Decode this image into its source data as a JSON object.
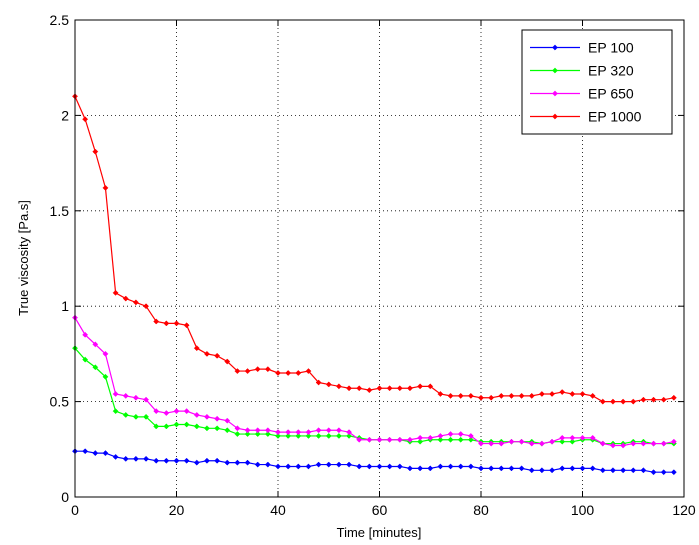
{
  "chart_data": {
    "type": "line",
    "title": "",
    "xlabel": "Time [minutes]",
    "ylabel": "True viscosity [Pa.s]",
    "xlim": [
      0,
      120
    ],
    "ylim": [
      0,
      2.5
    ],
    "xticks": [
      0,
      20,
      40,
      60,
      80,
      100,
      120
    ],
    "yticks": [
      0,
      0.5,
      1,
      1.5,
      2,
      2.5
    ],
    "xtick_labels": [
      "0",
      "20",
      "40",
      "60",
      "80",
      "100",
      "120"
    ],
    "ytick_labels": [
      "0",
      "0.5",
      "1",
      "1.5",
      "2",
      "2.5"
    ],
    "grid": true,
    "legend_position": "top-right",
    "x": [
      0,
      2,
      4,
      6,
      8,
      10,
      12,
      14,
      16,
      18,
      20,
      22,
      24,
      26,
      28,
      30,
      32,
      34,
      36,
      38,
      40,
      42,
      44,
      46,
      48,
      50,
      52,
      54,
      56,
      58,
      60,
      62,
      64,
      66,
      68,
      70,
      72,
      74,
      76,
      78,
      80,
      82,
      84,
      86,
      88,
      90,
      92,
      94,
      96,
      98,
      100,
      102,
      104,
      106,
      108,
      110,
      112,
      114,
      116,
      118
    ],
    "series": [
      {
        "name": "EP 100",
        "color": "#0000ff",
        "values": [
          0.24,
          0.24,
          0.23,
          0.23,
          0.21,
          0.2,
          0.2,
          0.2,
          0.19,
          0.19,
          0.19,
          0.19,
          0.18,
          0.19,
          0.19,
          0.18,
          0.18,
          0.18,
          0.17,
          0.17,
          0.16,
          0.16,
          0.16,
          0.16,
          0.17,
          0.17,
          0.17,
          0.17,
          0.16,
          0.16,
          0.16,
          0.16,
          0.16,
          0.15,
          0.15,
          0.15,
          0.16,
          0.16,
          0.16,
          0.16,
          0.15,
          0.15,
          0.15,
          0.15,
          0.15,
          0.14,
          0.14,
          0.14,
          0.15,
          0.15,
          0.15,
          0.15,
          0.14,
          0.14,
          0.14,
          0.14,
          0.14,
          0.13,
          0.13,
          0.13
        ]
      },
      {
        "name": "EP 320",
        "color": "#00ff00",
        "values": [
          0.78,
          0.72,
          0.68,
          0.63,
          0.45,
          0.43,
          0.42,
          0.42,
          0.37,
          0.37,
          0.38,
          0.38,
          0.37,
          0.36,
          0.36,
          0.35,
          0.33,
          0.33,
          0.33,
          0.33,
          0.32,
          0.32,
          0.32,
          0.32,
          0.32,
          0.32,
          0.32,
          0.32,
          0.31,
          0.3,
          0.3,
          0.3,
          0.3,
          0.29,
          0.29,
          0.3,
          0.3,
          0.3,
          0.3,
          0.3,
          0.29,
          0.29,
          0.29,
          0.29,
          0.29,
          0.29,
          0.28,
          0.29,
          0.29,
          0.29,
          0.3,
          0.3,
          0.28,
          0.28,
          0.28,
          0.29,
          0.29,
          0.28,
          0.28,
          0.28
        ]
      },
      {
        "name": "EP 650",
        "color": "#ff00ff",
        "values": [
          0.94,
          0.85,
          0.8,
          0.75,
          0.54,
          0.53,
          0.52,
          0.51,
          0.45,
          0.44,
          0.45,
          0.45,
          0.43,
          0.42,
          0.41,
          0.4,
          0.36,
          0.35,
          0.35,
          0.35,
          0.34,
          0.34,
          0.34,
          0.34,
          0.35,
          0.35,
          0.35,
          0.34,
          0.3,
          0.3,
          0.3,
          0.3,
          0.3,
          0.3,
          0.31,
          0.31,
          0.32,
          0.33,
          0.33,
          0.32,
          0.28,
          0.28,
          0.28,
          0.29,
          0.29,
          0.28,
          0.28,
          0.29,
          0.31,
          0.31,
          0.31,
          0.31,
          0.28,
          0.27,
          0.27,
          0.28,
          0.28,
          0.28,
          0.28,
          0.29
        ]
      },
      {
        "name": "EP 1000",
        "color": "#ff0000",
        "values": [
          2.1,
          1.98,
          1.81,
          1.62,
          1.07,
          1.04,
          1.02,
          1.0,
          0.92,
          0.91,
          0.91,
          0.9,
          0.78,
          0.75,
          0.74,
          0.71,
          0.66,
          0.66,
          0.67,
          0.67,
          0.65,
          0.65,
          0.65,
          0.66,
          0.6,
          0.59,
          0.58,
          0.57,
          0.57,
          0.56,
          0.57,
          0.57,
          0.57,
          0.57,
          0.58,
          0.58,
          0.54,
          0.53,
          0.53,
          0.53,
          0.52,
          0.52,
          0.53,
          0.53,
          0.53,
          0.53,
          0.54,
          0.54,
          0.55,
          0.54,
          0.54,
          0.53,
          0.5,
          0.5,
          0.5,
          0.5,
          0.51,
          0.51,
          0.51,
          0.52
        ]
      }
    ]
  }
}
